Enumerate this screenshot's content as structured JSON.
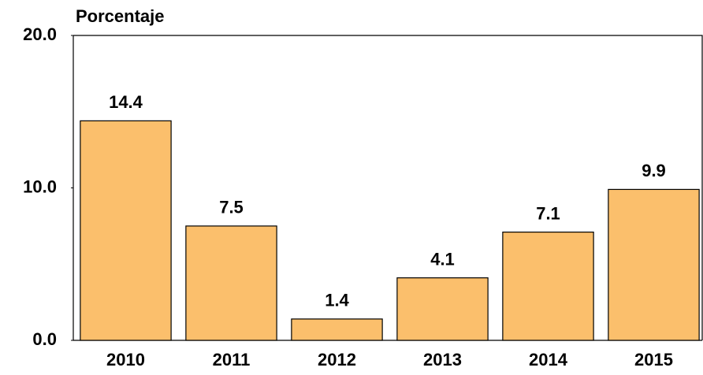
{
  "chart_data": {
    "type": "bar",
    "y_label": "Porcentaje",
    "categories": [
      "2010",
      "2011",
      "2012",
      "2013",
      "2014",
      "2015"
    ],
    "values": [
      14.4,
      7.5,
      1.4,
      4.1,
      7.1,
      9.9
    ],
    "color": "#fbbf6c",
    "ylim": [
      0,
      20
    ],
    "yticks": [
      {
        "value": 0,
        "label": "0.0"
      },
      {
        "value": 10,
        "label": "10.0"
      },
      {
        "value": 20,
        "label": "20.0"
      }
    ],
    "grid": false
  }
}
